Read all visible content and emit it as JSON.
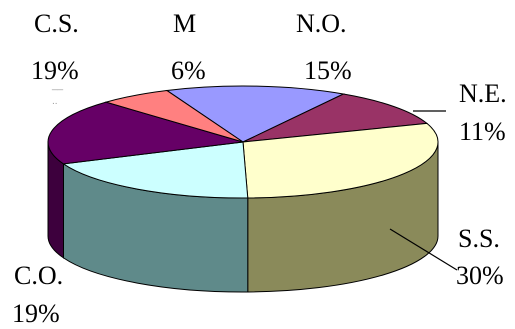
{
  "chart_data": {
    "type": "pie",
    "style": "3d",
    "title": "",
    "slices": [
      {
        "label": "N.O.",
        "value": 15,
        "percent_text": "15%",
        "color": "#9999ff"
      },
      {
        "label": "N.E.",
        "value": 11,
        "percent_text": "11%",
        "color": "#993366"
      },
      {
        "label": "S.S.",
        "value": 30,
        "percent_text": "30%",
        "color": "#ffffcc"
      },
      {
        "label": "C.O.",
        "value": 19,
        "percent_text": "19%",
        "color": "#ccffff"
      },
      {
        "label": "C.S.",
        "value": 19,
        "percent_text": "19%",
        "color": "#660066"
      },
      {
        "label": "M",
        "value": 6,
        "percent_text": "6%",
        "color": "#ff8080"
      }
    ],
    "side_colors": {
      "S.S.": "#8a8a5a",
      "C.O.": "#5f8a8a",
      "N.E.": "#4a1a33"
    }
  }
}
